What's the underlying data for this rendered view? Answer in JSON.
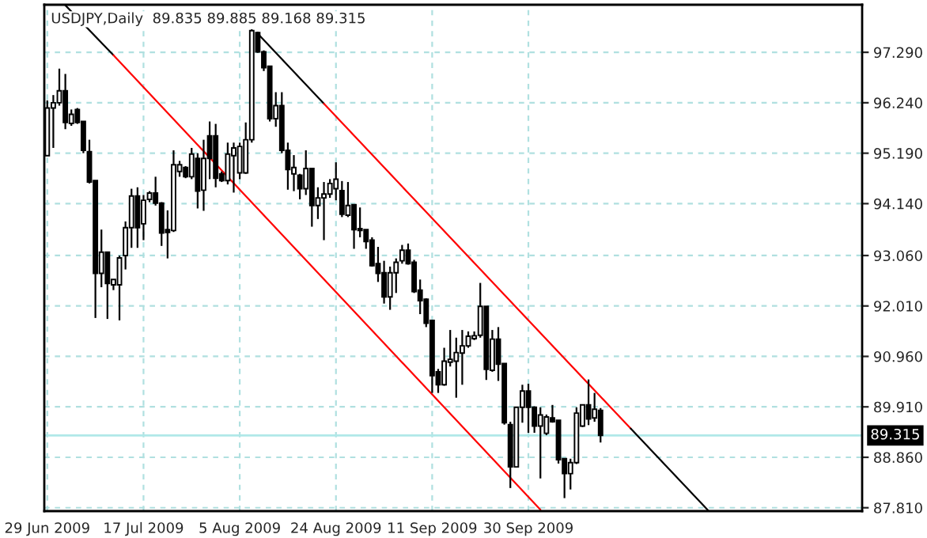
{
  "chart_data": {
    "type": "candlestick",
    "title": "USDJPY,Daily  89.835 89.885 89.168 89.315",
    "categories": [
      "29 Jun 2009",
      null,
      null,
      null,
      null,
      null,
      null,
      null,
      null,
      null,
      null,
      null,
      null,
      null,
      null,
      null,
      "17 Jul 2009",
      null,
      null,
      null,
      null,
      null,
      null,
      null,
      null,
      null,
      null,
      null,
      null,
      null,
      null,
      null,
      "5 Aug 2009",
      null,
      null,
      null,
      null,
      null,
      null,
      null,
      null,
      null,
      null,
      null,
      null,
      null,
      null,
      null,
      "24 Aug 2009",
      null,
      null,
      null,
      null,
      null,
      null,
      null,
      null,
      null,
      null,
      null,
      null,
      null,
      null,
      null,
      "11 Sep 2009",
      null,
      null,
      null,
      null,
      null,
      null,
      null,
      null,
      null,
      null,
      null,
      null,
      null,
      null,
      null,
      "30 Sep 2009",
      null,
      null,
      null,
      null,
      null,
      null,
      null,
      null,
      null,
      null,
      null,
      null,
      null,
      null,
      null,
      null,
      null,
      null,
      null,
      null,
      null,
      null,
      null,
      null,
      null,
      null,
      null,
      null,
      null,
      null,
      null,
      null,
      null,
      null,
      null,
      null,
      null,
      null,
      null,
      null,
      null,
      null,
      null,
      null,
      null,
      null,
      null,
      null,
      null,
      null,
      null,
      null,
      null,
      null,
      null
    ],
    "ohlc": [
      [
        95.14,
        96.29,
        95.14,
        96.13
      ],
      [
        96.13,
        96.4,
        95.3,
        96.24
      ],
      [
        96.24,
        96.95,
        96.18,
        96.49
      ],
      [
        96.49,
        96.84,
        95.69,
        95.83
      ],
      [
        95.81,
        96.1,
        95.76,
        96.0
      ],
      [
        96.1,
        96.13,
        95.8,
        95.83
      ],
      [
        95.85,
        95.85,
        95.19,
        95.25
      ],
      [
        95.22,
        95.47,
        94.56,
        94.59
      ],
      [
        94.62,
        94.62,
        91.76,
        92.69
      ],
      [
        92.69,
        93.6,
        92.4,
        93.13
      ],
      [
        93.13,
        93.13,
        91.74,
        92.48
      ],
      [
        92.45,
        92.56,
        92.34,
        92.56
      ],
      [
        92.45,
        93.06,
        91.71,
        93.01
      ],
      [
        93.06,
        93.77,
        92.77,
        93.64
      ],
      [
        93.64,
        94.45,
        93.22,
        94.3
      ],
      [
        94.3,
        94.48,
        93.22,
        93.64
      ],
      [
        93.72,
        94.32,
        93.38,
        94.21
      ],
      [
        94.23,
        94.4,
        94.17,
        94.36
      ],
      [
        94.36,
        94.7,
        94.1,
        94.15
      ],
      [
        94.15,
        94.17,
        93.26,
        93.53
      ],
      [
        93.6,
        94.0,
        93.0,
        93.54
      ],
      [
        93.58,
        95.25,
        93.55,
        94.95
      ],
      [
        94.81,
        95.03,
        94.7,
        94.95
      ],
      [
        94.89,
        94.92,
        94.67,
        94.7
      ],
      [
        94.7,
        95.3,
        94.65,
        95.17
      ],
      [
        95.08,
        95.19,
        94.04,
        94.4
      ],
      [
        94.42,
        95.47,
        93.99,
        95.08
      ],
      [
        95.55,
        95.85,
        94.65,
        95.08
      ],
      [
        95.55,
        95.8,
        94.48,
        94.67
      ],
      [
        94.76,
        94.81,
        94.59,
        94.62
      ],
      [
        94.62,
        95.41,
        94.54,
        95.17
      ],
      [
        95.14,
        95.41,
        94.37,
        95.3
      ],
      [
        94.78,
        95.41,
        94.65,
        95.33
      ],
      [
        94.78,
        95.83,
        94.76,
        95.47
      ],
      [
        95.47,
        97.77,
        95.41,
        97.74
      ],
      [
        97.7,
        97.72,
        97.28,
        97.3
      ],
      [
        97.3,
        97.33,
        96.9,
        96.97
      ],
      [
        97.0,
        97.0,
        95.85,
        95.91
      ],
      [
        95.91,
        96.46,
        95.74,
        96.18
      ],
      [
        96.18,
        96.46,
        95.19,
        95.25
      ],
      [
        95.25,
        95.41,
        94.43,
        94.85
      ],
      [
        94.76,
        95.15,
        94.4,
        94.89
      ],
      [
        94.73,
        94.76,
        94.23,
        94.45
      ],
      [
        94.45,
        95.25,
        94.32,
        94.87
      ],
      [
        94.87,
        94.87,
        93.66,
        94.1
      ],
      [
        94.1,
        94.48,
        93.82,
        94.26
      ],
      [
        94.26,
        94.59,
        93.38,
        94.34
      ],
      [
        94.34,
        94.65,
        94.26,
        94.56
      ],
      [
        94.45,
        95.0,
        94.21,
        94.65
      ],
      [
        94.41,
        94.61,
        93.86,
        93.92
      ],
      [
        93.9,
        94.59,
        93.86,
        94.1
      ],
      [
        94.12,
        94.12,
        93.2,
        93.6
      ],
      [
        93.62,
        94.06,
        93.44,
        93.58
      ],
      [
        93.6,
        93.6,
        93.2,
        93.35
      ],
      [
        93.38,
        93.44,
        92.83,
        92.85
      ],
      [
        92.89,
        93.24,
        92.51,
        92.69
      ],
      [
        92.7,
        92.95,
        92.06,
        92.2
      ],
      [
        92.2,
        92.83,
        91.93,
        92.7
      ],
      [
        92.7,
        93.0,
        92.28,
        92.92
      ],
      [
        92.95,
        93.28,
        92.89,
        93.17
      ],
      [
        93.17,
        93.31,
        92.87,
        92.89
      ],
      [
        92.92,
        92.97,
        92.28,
        92.31
      ],
      [
        92.34,
        92.56,
        91.84,
        92.12
      ],
      [
        92.15,
        92.17,
        91.57,
        91.65
      ],
      [
        91.71,
        91.71,
        90.2,
        90.56
      ],
      [
        90.64,
        90.7,
        90.2,
        90.37
      ],
      [
        90.37,
        91.14,
        90.35,
        90.86
      ],
      [
        90.84,
        91.51,
        90.75,
        90.9
      ],
      [
        90.86,
        91.35,
        90.1,
        91.04
      ],
      [
        91.03,
        91.51,
        90.37,
        91.18
      ],
      [
        91.18,
        91.48,
        91.14,
        91.38
      ],
      [
        91.33,
        91.48,
        91.3,
        91.39
      ],
      [
        91.4,
        92.49,
        91.35,
        92.0
      ],
      [
        92.0,
        92.0,
        90.47,
        90.69
      ],
      [
        90.67,
        91.51,
        90.64,
        91.32
      ],
      [
        91.32,
        91.57,
        90.45,
        90.8
      ],
      [
        90.81,
        90.81,
        89.54,
        89.58
      ],
      [
        89.54,
        89.6,
        88.22,
        88.66
      ],
      [
        88.66,
        89.91,
        88.66,
        89.9
      ],
      [
        89.9,
        90.37,
        89.58,
        90.24
      ],
      [
        90.24,
        90.39,
        89.37,
        89.9
      ],
      [
        89.9,
        89.92,
        89.37,
        89.51
      ],
      [
        89.51,
        89.9,
        88.42,
        89.74
      ],
      [
        89.36,
        89.75,
        89.32,
        89.7
      ],
      [
        89.68,
        89.95,
        89.58,
        89.6
      ],
      [
        89.63,
        89.63,
        88.73,
        88.81
      ],
      [
        88.83,
        88.83,
        88.01,
        88.52
      ],
      [
        88.52,
        88.83,
        88.19,
        88.75
      ],
      [
        88.75,
        89.9,
        88.72,
        89.78
      ],
      [
        89.51,
        89.95,
        89.49,
        89.95
      ],
      [
        89.95,
        90.48,
        89.53,
        89.66
      ],
      [
        89.68,
        90.2,
        89.6,
        89.86
      ],
      [
        89.835,
        89.885,
        89.168,
        89.315
      ],
      null,
      null,
      null,
      null,
      null,
      null,
      null,
      null,
      null,
      null,
      null,
      null,
      null,
      null,
      null,
      null,
      null,
      null,
      null,
      null,
      null,
      null,
      null,
      null,
      null,
      null,
      null,
      null,
      null,
      null,
      null,
      null,
      null,
      null,
      null,
      null,
      null,
      null,
      null,
      null,
      null,
      null,
      null
    ],
    "series": [
      {
        "type": "line",
        "color": "#000000",
        "values": [
          null,
          null,
          null,
          98.27,
          null,
          null,
          null,
          null,
          null,
          null,
          null,
          97.23,
          null,
          null,
          null,
          null,
          null,
          null,
          null,
          null,
          null,
          null,
          null,
          null,
          null,
          null,
          null,
          null,
          null,
          null,
          null,
          null,
          null,
          null,
          null,
          null,
          null,
          null,
          null,
          null,
          null,
          null,
          null,
          null,
          null,
          null,
          null,
          null,
          null,
          null,
          null,
          null,
          null,
          null,
          null,
          null,
          null,
          null,
          null,
          null,
          null,
          null,
          null,
          null,
          null,
          null,
          null,
          null,
          null,
          null,
          null,
          null,
          null,
          null,
          null,
          null,
          null,
          null,
          null,
          null,
          null,
          null,
          null,
          null,
          null,
          null,
          null,
          null,
          null,
          null,
          null,
          null,
          null,
          null,
          null,
          null,
          null,
          null,
          null,
          null,
          null,
          null,
          null,
          null,
          null,
          null,
          null,
          null,
          null,
          null,
          null,
          null,
          null,
          null,
          null,
          null,
          null,
          null,
          null,
          null,
          null,
          null,
          null,
          null,
          null,
          null,
          null,
          null,
          null,
          null,
          null,
          null,
          null,
          null,
          null,
          null
        ]
      },
      {
        "type": "line",
        "color": "#ff0000",
        "values": [
          null,
          null,
          null,
          null,
          null,
          null,
          null,
          null,
          null,
          null,
          null,
          97.23,
          null,
          null,
          null,
          null,
          null,
          null,
          null,
          null,
          null,
          null,
          null,
          null,
          null,
          null,
          null,
          null,
          null,
          null,
          null,
          null,
          null,
          null,
          null,
          null,
          null,
          null,
          null,
          null,
          null,
          null,
          null,
          null,
          null,
          null,
          null,
          null,
          null,
          null,
          null,
          null,
          null,
          null,
          null,
          null,
          null,
          null,
          null,
          null,
          null,
          null,
          null,
          null,
          null,
          null,
          null,
          null,
          null,
          null,
          null,
          null,
          null,
          null,
          null,
          null,
          null,
          null,
          null,
          null,
          null,
          null,
          87.77,
          null,
          null,
          null,
          null,
          null,
          null,
          null,
          null,
          null,
          null,
          null,
          null,
          null,
          null,
          null,
          null,
          null,
          null,
          null,
          null,
          null,
          null,
          null,
          null,
          null,
          null,
          null,
          null,
          null,
          null,
          null,
          null,
          null,
          null,
          null,
          null,
          null,
          null,
          null,
          null,
          null,
          null,
          null,
          null,
          null,
          null,
          null,
          null,
          null,
          null,
          null,
          null,
          null
        ]
      },
      {
        "type": "line",
        "color": "#000000",
        "values": [
          null,
          null,
          null,
          null,
          null,
          null,
          null,
          null,
          null,
          null,
          null,
          null,
          null,
          null,
          null,
          null,
          null,
          null,
          null,
          null,
          null,
          null,
          null,
          null,
          null,
          null,
          null,
          null,
          null,
          null,
          null,
          null,
          null,
          null,
          null,
          97.68,
          null,
          null,
          null,
          null,
          null,
          null,
          null,
          null,
          null,
          null,
          96.22,
          null,
          null,
          null,
          null,
          null,
          null,
          null,
          null,
          null,
          null,
          null,
          null,
          null,
          null,
          null,
          null,
          null,
          null,
          null,
          null,
          null,
          null,
          null,
          null,
          null,
          null,
          null,
          null,
          null,
          null,
          null,
          null,
          null,
          null,
          null,
          null,
          null,
          null,
          null,
          null,
          null,
          null,
          null,
          null,
          null,
          null,
          null,
          null,
          null,
          null,
          null,
          null,
          null,
          null,
          null,
          null,
          null,
          null,
          null,
          null,
          null,
          null,
          null,
          null,
          null,
          null,
          null,
          null,
          null,
          null,
          null,
          null,
          null,
          null,
          null,
          null,
          null,
          null,
          null,
          null,
          null,
          null,
          null,
          null,
          null,
          null,
          null,
          null,
          null
        ]
      },
      {
        "type": "line",
        "color": "#ff0000",
        "values": [
          null,
          null,
          null,
          null,
          null,
          null,
          null,
          null,
          null,
          null,
          null,
          null,
          null,
          null,
          null,
          null,
          null,
          null,
          null,
          null,
          null,
          null,
          null,
          null,
          null,
          null,
          null,
          null,
          null,
          null,
          null,
          null,
          null,
          null,
          null,
          null,
          null,
          null,
          null,
          null,
          null,
          null,
          null,
          null,
          null,
          null,
          96.22,
          null,
          null,
          null,
          null,
          null,
          null,
          null,
          null,
          null,
          null,
          null,
          null,
          null,
          null,
          null,
          null,
          null,
          null,
          null,
          null,
          null,
          null,
          null,
          null,
          null,
          null,
          null,
          null,
          null,
          null,
          null,
          null,
          null,
          null,
          null,
          null,
          null,
          null,
          null,
          null,
          null,
          null,
          null,
          null,
          null,
          null,
          null,
          null,
          null,
          null,
          89.46,
          null,
          null,
          null,
          null,
          null,
          null,
          null,
          null,
          null,
          null,
          null,
          null,
          null,
          null,
          null,
          null,
          null,
          null,
          null,
          null,
          null,
          null,
          null,
          null,
          null,
          null,
          null,
          null,
          null,
          null,
          null,
          null,
          null,
          null,
          null,
          null,
          null,
          null
        ]
      },
      {
        "type": "line",
        "color": "#000000",
        "values": [
          null,
          null,
          null,
          null,
          null,
          null,
          null,
          null,
          null,
          null,
          null,
          null,
          null,
          null,
          null,
          null,
          null,
          null,
          null,
          null,
          null,
          null,
          null,
          null,
          null,
          null,
          null,
          null,
          null,
          null,
          null,
          null,
          null,
          null,
          null,
          null,
          null,
          null,
          null,
          null,
          null,
          null,
          null,
          null,
          null,
          null,
          null,
          null,
          null,
          null,
          null,
          null,
          null,
          null,
          null,
          null,
          null,
          null,
          null,
          null,
          null,
          null,
          null,
          null,
          null,
          null,
          null,
          null,
          null,
          null,
          null,
          null,
          null,
          null,
          null,
          null,
          null,
          null,
          null,
          null,
          null,
          null,
          null,
          null,
          null,
          null,
          null,
          null,
          null,
          null,
          null,
          null,
          null,
          null,
          null,
          null,
          null,
          89.46,
          null,
          null,
          null,
          null,
          null,
          null,
          null,
          null,
          null,
          null,
          null,
          null,
          87.74,
          null,
          null,
          null,
          null,
          null,
          null,
          null,
          null,
          null,
          null,
          null,
          null,
          null,
          null,
          null,
          null,
          null,
          null,
          null,
          null,
          null,
          null,
          null,
          null,
          null
        ]
      }
    ],
    "ylim": [
      87.74,
      98.28
    ],
    "yticks": [
      {
        "value": 87.81,
        "label": "87.810"
      },
      {
        "value": 88.86,
        "label": "88.860"
      },
      {
        "value": 89.91,
        "label": "89.910"
      },
      {
        "value": 90.96,
        "label": "90.960"
      },
      {
        "value": 92.01,
        "label": "92.010"
      },
      {
        "value": 93.06,
        "label": "93.060"
      },
      {
        "value": 94.14,
        "label": "94.140"
      },
      {
        "value": 95.19,
        "label": "95.190"
      },
      {
        "value": 96.24,
        "label": "96.240"
      },
      {
        "value": 97.29,
        "label": "97.290"
      }
    ],
    "ref_lines": [
      {
        "axis": "y",
        "value": 89.315,
        "label": "89.315",
        "color": "#b0e8e8"
      }
    ],
    "grid": true
  }
}
